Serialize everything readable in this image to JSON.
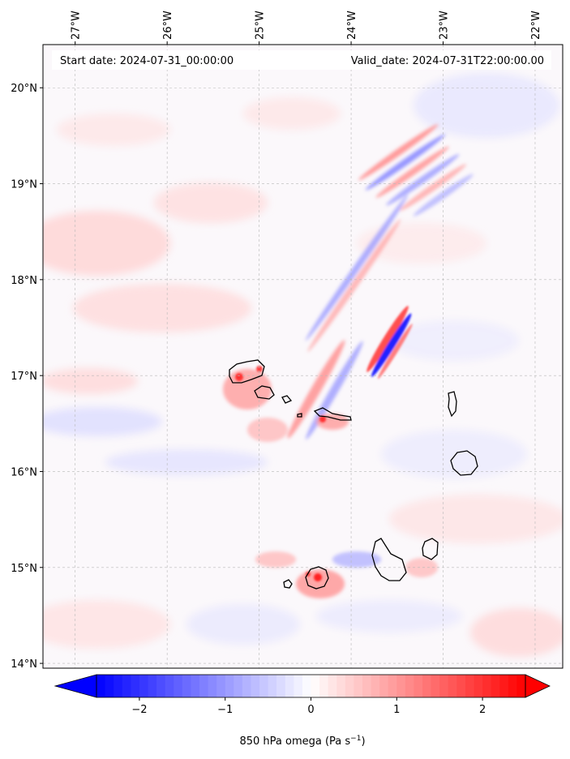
{
  "header": {
    "start_label": "Start date: 2024-07-31_00:00:00",
    "valid_label": "Valid_date: 2024-07-31T22:00:00.00"
  },
  "map": {
    "lon_ticks": [
      "27°W",
      "26°W",
      "25°W",
      "24°W",
      "23°W",
      "22°W"
    ],
    "lon_values": [
      -27,
      -26,
      -25,
      -24,
      -23,
      -22
    ],
    "lat_ticks": [
      "20°N",
      "19°N",
      "18°N",
      "17°N",
      "16°N",
      "15°N",
      "14°N"
    ],
    "lat_values": [
      20,
      19,
      18,
      17,
      16,
      15,
      14
    ],
    "lon_range": [
      -27.35,
      -21.7
    ],
    "lat_range": [
      13.95,
      20.45
    ],
    "gridlines": true,
    "projection": "PlateCarree",
    "field": "850 hPa omega",
    "colormap": "bwr"
  },
  "colorbar": {
    "ticks": [
      "−2",
      "−1",
      "0",
      "1",
      "2"
    ],
    "tick_values": [
      -2,
      -1,
      0,
      1,
      2
    ],
    "vmin": -2.5,
    "vmax": 2.5,
    "extend": "both",
    "label": "850 hPa omega (Pa s",
    "label_sup": "−1",
    "label_close": ")",
    "color_min": "#0000ff",
    "color_mid": "#ffffff",
    "color_max": "#ff0000"
  }
}
